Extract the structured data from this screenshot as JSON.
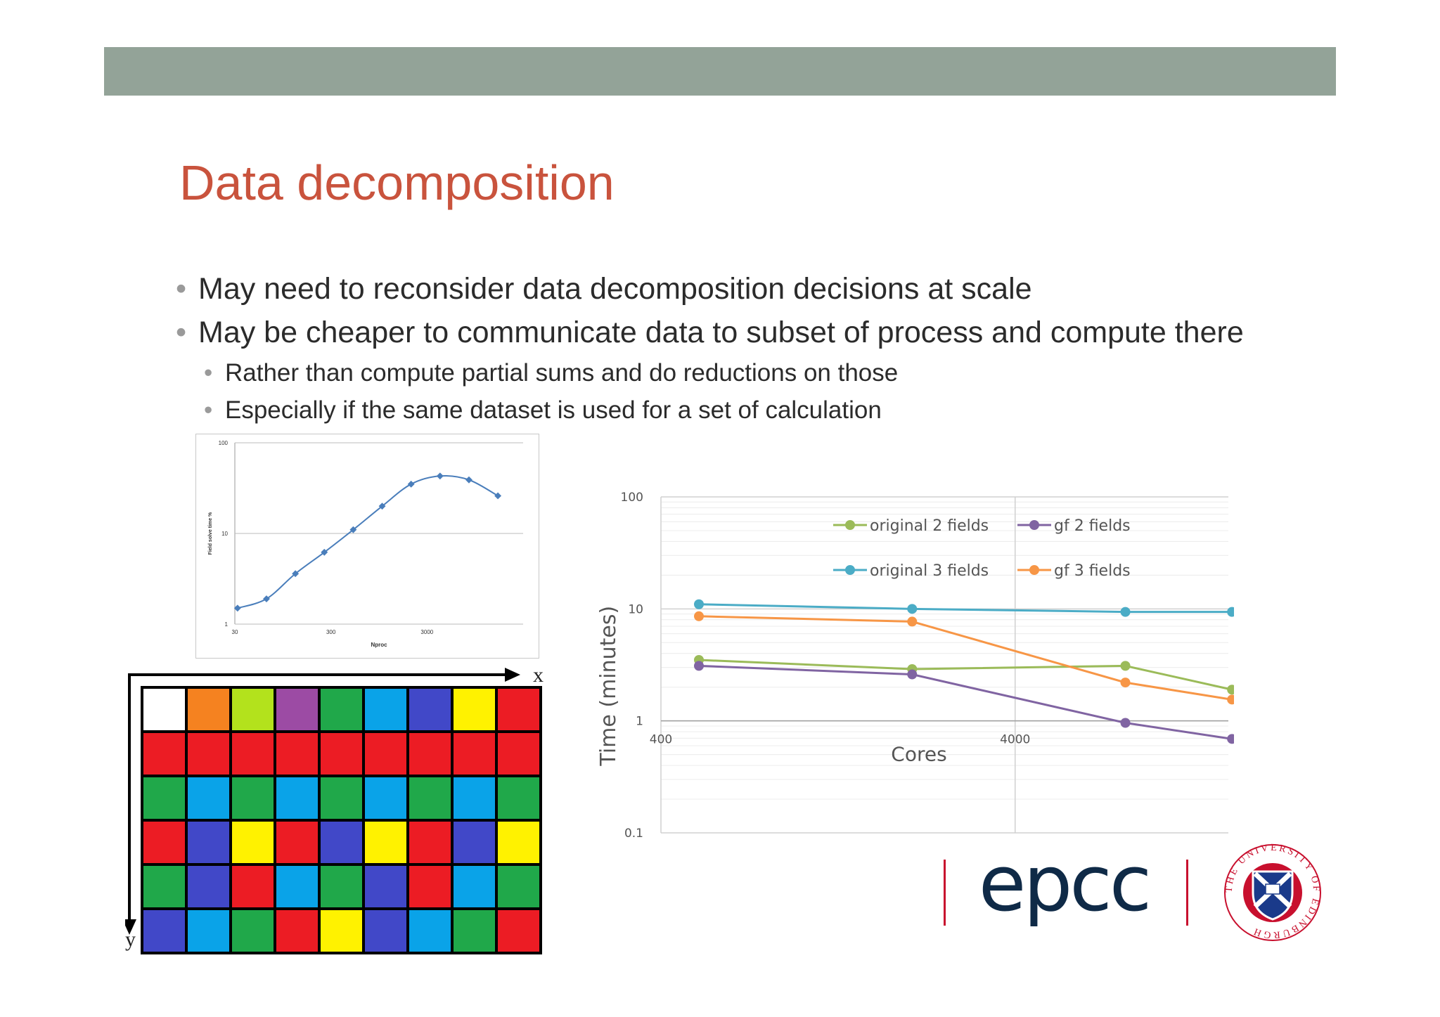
{
  "slide": {
    "title": "Data decomposition",
    "bullets": [
      "May need to reconsider data decomposition decisions at scale",
      "May be cheaper to communicate data to subset of process and compute there"
    ],
    "sub_bullets": [
      "Rather than compute partial sums and do reductions on those",
      "Especially if the same dataset is used for a set of calculation"
    ],
    "bullet_glyph": "•",
    "colors": {
      "banner": "#93a398",
      "title": "#c9533d"
    }
  },
  "logo": {
    "wordmark": "epcc",
    "seal_text": "THE UNIVERSITY OF EDINBURGH",
    "colors": {
      "wordmark": "#0f2a47",
      "bars": "#c8102e",
      "seal": "#c8102e",
      "shield": "#1a3a8a"
    }
  },
  "decomposition_grid": {
    "x_label": "x",
    "y_label": "y",
    "rows": [
      [
        "#ffffff",
        "#f58220",
        "#b3e21c",
        "#9c4ba4",
        "#20a84a",
        "#0aa3e8",
        "#4148c8",
        "#fff200",
        "#ec1c24"
      ],
      [
        "#ec1c24",
        "#ec1c24",
        "#ec1c24",
        "#ec1c24",
        "#ec1c24",
        "#ec1c24",
        "#ec1c24",
        "#ec1c24",
        "#ec1c24"
      ],
      [
        "#20a84a",
        "#0aa3e8",
        "#20a84a",
        "#0aa3e8",
        "#20a84a",
        "#0aa3e8",
        "#20a84a",
        "#0aa3e8",
        "#20a84a"
      ],
      [
        "#ec1c24",
        "#4148c8",
        "#fff200",
        "#ec1c24",
        "#4148c8",
        "#fff200",
        "#ec1c24",
        "#4148c8",
        "#fff200"
      ],
      [
        "#20a84a",
        "#4148c8",
        "#ec1c24",
        "#0aa3e8",
        "#20a84a",
        "#4148c8",
        "#ec1c24",
        "#0aa3e8",
        "#20a84a"
      ],
      [
        "#4148c8",
        "#0aa3e8",
        "#20a84a",
        "#ec1c24",
        "#fff200",
        "#4148c8",
        "#0aa3e8",
        "#20a84a",
        "#ec1c24"
      ]
    ]
  },
  "chart_data": [
    {
      "type": "line",
      "title": "",
      "xlabel": "Nproc",
      "ylabel": "Field solve time %",
      "x_scale": "log",
      "y_scale": "log",
      "xlim": [
        30,
        30000
      ],
      "ylim": [
        1,
        100
      ],
      "x_ticks": [
        "30",
        "300",
        "3000"
      ],
      "y_ticks": [
        "1",
        "10",
        "100"
      ],
      "grid": true,
      "series": [
        {
          "color": "#4a7ebb",
          "x": [
            32,
            64,
            128,
            256,
            512,
            1024,
            2048,
            4096,
            8192,
            16384
          ],
          "y": [
            1.5,
            1.9,
            3.6,
            6.2,
            11,
            20,
            35,
            43,
            39,
            26
          ]
        }
      ]
    },
    {
      "type": "line",
      "title": "",
      "xlabel": "Cores",
      "ylabel": "Time (minutes)",
      "x_scale": "log",
      "y_scale": "log",
      "xlim": [
        400,
        16000
      ],
      "ylim": [
        0.1,
        100
      ],
      "x_ticks": [
        "400",
        "4000"
      ],
      "y_ticks": [
        "0.1",
        "1",
        "10",
        "100"
      ],
      "grid": true,
      "legend": "top-right",
      "series": [
        {
          "name": "original 2 fields",
          "color": "#9bbb59",
          "x": [
            512,
            2048,
            8192,
            16384
          ],
          "y": [
            3.5,
            2.9,
            3.1,
            1.9
          ]
        },
        {
          "name": "gf 2 fields",
          "color": "#8064a2",
          "x": [
            512,
            2048,
            8192,
            16384
          ],
          "y": [
            3.1,
            2.6,
            0.96,
            0.69
          ]
        },
        {
          "name": "original 3 fields",
          "color": "#4bacc6",
          "x": [
            512,
            2048,
            8192,
            16384
          ],
          "y": [
            11,
            10,
            9.4,
            9.4
          ]
        },
        {
          "name": "gf 3 fields",
          "color": "#f79646",
          "x": [
            512,
            2048,
            8192,
            16384
          ],
          "y": [
            8.6,
            7.7,
            2.2,
            1.55
          ]
        }
      ]
    }
  ]
}
